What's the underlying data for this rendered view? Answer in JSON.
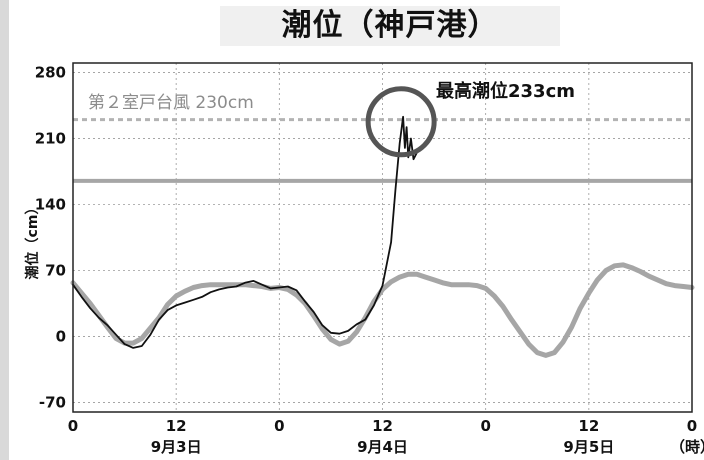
{
  "title": "潮位（神戸港）",
  "chart_data": {
    "type": "line",
    "ylabel": "潮位（cm）",
    "xlabel_unit": "（時）",
    "ylim": [
      -80,
      290
    ],
    "y_ticks": [
      280,
      210,
      140,
      70,
      0,
      -70
    ],
    "x_range_hours": [
      0,
      72
    ],
    "x_ticks": [
      {
        "hour": 0,
        "label": "0"
      },
      {
        "hour": 12,
        "label": "12"
      },
      {
        "hour": 24,
        "label": "0"
      },
      {
        "hour": 36,
        "label": "12"
      },
      {
        "hour": 48,
        "label": "0"
      },
      {
        "hour": 60,
        "label": "12"
      },
      {
        "hour": 72,
        "label": "0"
      }
    ],
    "date_labels": [
      {
        "hour": 12,
        "label": "9月3日"
      },
      {
        "hour": 36,
        "label": "9月4日"
      },
      {
        "hour": 60,
        "label": "9月5日"
      }
    ],
    "grid": true,
    "reference_lines": [
      {
        "label": "第２室戸台風 230cm",
        "value": 230,
        "style": "dashed",
        "color": "#b3b3b3"
      },
      {
        "label": "",
        "value": 165,
        "style": "solid",
        "color": "#a6a6a6"
      }
    ],
    "annotation": {
      "label": "最高潮位233cm",
      "x_hour": 38.4,
      "y_value": 233
    },
    "series": [
      {
        "color": "#111111",
        "points": [
          [
            0,
            55
          ],
          [
            1,
            42
          ],
          [
            2,
            30
          ],
          [
            3,
            20
          ],
          [
            4,
            12
          ],
          [
            5,
            2
          ],
          [
            6,
            -8
          ],
          [
            7,
            -12
          ],
          [
            8,
            -10
          ],
          [
            9,
            2
          ],
          [
            10,
            18
          ],
          [
            11,
            28
          ],
          [
            12,
            33
          ],
          [
            13,
            36
          ],
          [
            14,
            39
          ],
          [
            15,
            42
          ],
          [
            16,
            47
          ],
          [
            17,
            50
          ],
          [
            18,
            52
          ],
          [
            19,
            53
          ],
          [
            20,
            57
          ],
          [
            21,
            59
          ],
          [
            22,
            55
          ],
          [
            23,
            51
          ],
          [
            24,
            52
          ],
          [
            25,
            53
          ],
          [
            26,
            49
          ],
          [
            27,
            37
          ],
          [
            28,
            26
          ],
          [
            29,
            12
          ],
          [
            30,
            4
          ],
          [
            31,
            3
          ],
          [
            32,
            6
          ],
          [
            33,
            13
          ],
          [
            34,
            18
          ],
          [
            35,
            33
          ],
          [
            36,
            54
          ],
          [
            37,
            100
          ],
          [
            37.5,
            155
          ],
          [
            38,
            205
          ],
          [
            38.4,
            233
          ],
          [
            38.6,
            200
          ],
          [
            38.8,
            222
          ],
          [
            39,
            190
          ],
          [
            39.3,
            210
          ],
          [
            39.6,
            188
          ],
          [
            40,
            195
          ]
        ]
      },
      {
        "color": "#a6a6a6",
        "points": [
          [
            0,
            57
          ],
          [
            2,
            35
          ],
          [
            4,
            10
          ],
          [
            5,
            -2
          ],
          [
            6,
            -7
          ],
          [
            7,
            -7
          ],
          [
            8,
            -2
          ],
          [
            10,
            20
          ],
          [
            11,
            34
          ],
          [
            12,
            43
          ],
          [
            13,
            48
          ],
          [
            14,
            52
          ],
          [
            15,
            54
          ],
          [
            16,
            55
          ],
          [
            17,
            55
          ],
          [
            18,
            55
          ],
          [
            19,
            55
          ],
          [
            20,
            55
          ],
          [
            21,
            54
          ],
          [
            22,
            53
          ],
          [
            23,
            51
          ],
          [
            24,
            52
          ],
          [
            25,
            50
          ],
          [
            26,
            44
          ],
          [
            27,
            35
          ],
          [
            28,
            22
          ],
          [
            29,
            8
          ],
          [
            30,
            -3
          ],
          [
            31,
            -8
          ],
          [
            32,
            -5
          ],
          [
            33,
            5
          ],
          [
            34,
            20
          ],
          [
            35,
            37
          ],
          [
            36,
            50
          ],
          [
            37,
            58
          ],
          [
            38,
            63
          ],
          [
            39,
            66
          ],
          [
            40,
            66
          ],
          [
            41,
            63
          ],
          [
            42,
            60
          ],
          [
            43,
            57
          ],
          [
            44,
            55
          ],
          [
            45,
            55
          ],
          [
            46,
            55
          ],
          [
            47,
            54
          ],
          [
            48,
            51
          ],
          [
            49,
            43
          ],
          [
            50,
            32
          ],
          [
            51,
            18
          ],
          [
            52,
            5
          ],
          [
            53,
            -8
          ],
          [
            54,
            -17
          ],
          [
            55,
            -20
          ],
          [
            56,
            -17
          ],
          [
            57,
            -6
          ],
          [
            58,
            10
          ],
          [
            59,
            30
          ],
          [
            60,
            46
          ],
          [
            61,
            60
          ],
          [
            62,
            70
          ],
          [
            63,
            75
          ],
          [
            64,
            76
          ],
          [
            65,
            73
          ],
          [
            66,
            69
          ],
          [
            67,
            64
          ],
          [
            68,
            60
          ],
          [
            69,
            56
          ],
          [
            70,
            54
          ],
          [
            71,
            53
          ],
          [
            72,
            52
          ]
        ]
      }
    ]
  }
}
